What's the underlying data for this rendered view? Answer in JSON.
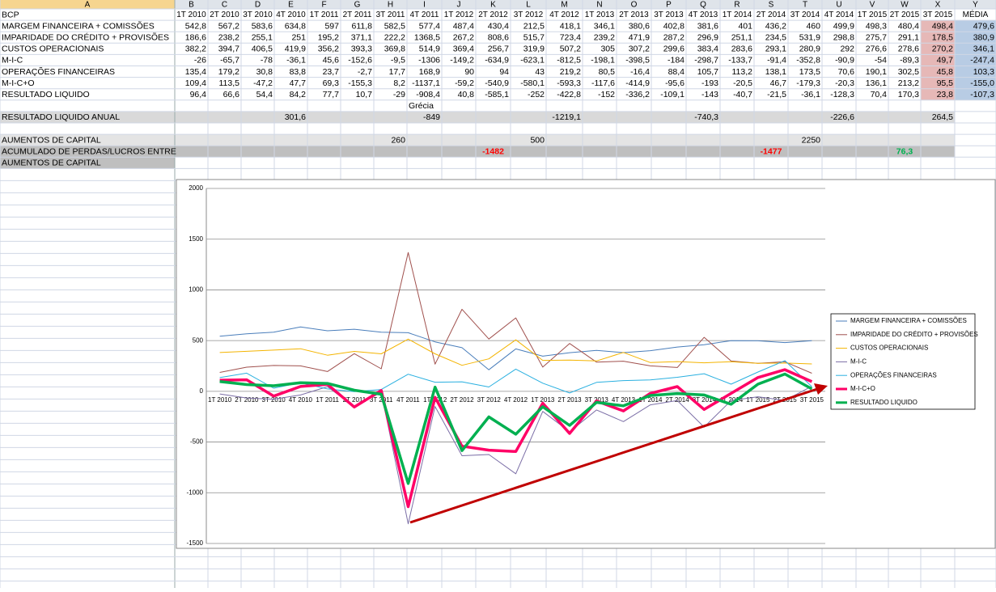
{
  "sheet": {
    "column_headers": [
      "A",
      "B",
      "C",
      "D",
      "E",
      "F",
      "G",
      "H",
      "I",
      "J",
      "K",
      "L",
      "M",
      "N",
      "O",
      "P",
      "Q",
      "R",
      "S",
      "T",
      "U",
      "V",
      "W",
      "X",
      "Y"
    ],
    "rows": [
      [
        "BCP",
        "1T 2010",
        "2T 2010",
        "3T 2010",
        "4T 2010",
        "1T 2011",
        "2T 2011",
        "3T 2011",
        "4T 2011",
        "1T 2012",
        "2T 2012",
        "3T 2012",
        "4T 2012",
        "1T 2013",
        "2T 2013",
        "3T 2013",
        "4T 2013",
        "1T 2014",
        "2T 2014",
        "3T 2014",
        "4T 2014",
        "1T 2015",
        "2T 2015",
        "3T 2015",
        "MÉDIA"
      ],
      [
        "MARGEM FINANCEIRA + COMISSÕES",
        "542,8",
        "567,2",
        "583,6",
        "634,8",
        "597",
        "611,8",
        "582,5",
        "577,4",
        "487,4",
        "430,4",
        "212,5",
        "418,1",
        "346,1",
        "380,6",
        "402,8",
        "381,6",
        "401",
        "436,2",
        "460",
        "499,9",
        "498,3",
        "480,4",
        "498,4",
        "479,6"
      ],
      [
        "IMPARIDADE DO CRÉDITO + PROVISÕES",
        "186,6",
        "238,2",
        "255,1",
        "251",
        "195,2",
        "371,1",
        "222,2",
        "1368,5",
        "267,2",
        "808,6",
        "515,7",
        "723,4",
        "239,2",
        "471,9",
        "287,2",
        "296,9",
        "251,1",
        "234,5",
        "531,9",
        "298,8",
        "275,7",
        "291,1",
        "178,5",
        "380,9"
      ],
      [
        "CUSTOS OPERACIONAIS",
        "382,2",
        "394,7",
        "406,5",
        "419,9",
        "356,2",
        "393,3",
        "369,8",
        "514,9",
        "369,4",
        "256,7",
        "319,9",
        "507,2",
        "305",
        "307,2",
        "299,6",
        "383,4",
        "283,6",
        "293,1",
        "280,9",
        "292",
        "276,6",
        "278,6",
        "270,2",
        "346,1"
      ],
      [
        "M-I-C",
        "-26",
        "-65,7",
        "-78",
        "-36,1",
        "45,6",
        "-152,6",
        "-9,5",
        "-1306",
        "-149,2",
        "-634,9",
        "-623,1",
        "-812,5",
        "-198,1",
        "-398,5",
        "-184",
        "-298,7",
        "-133,7",
        "-91,4",
        "-352,8",
        "-90,9",
        "-54",
        "-89,3",
        "49,7",
        "-247,4"
      ],
      [
        "OPERAÇÕES FINANCEIRAS",
        "135,4",
        "179,2",
        "30,8",
        "83,8",
        "23,7",
        "-2,7",
        "17,7",
        "168,9",
        "90",
        "94",
        "43",
        "219,2",
        "80,5",
        "-16,4",
        "88,4",
        "105,7",
        "113,2",
        "138,1",
        "173,5",
        "70,6",
        "190,1",
        "302,5",
        "45,8",
        "103,3"
      ],
      [
        "M-I-C+O",
        "109,4",
        "113,5",
        "-47,2",
        "47,7",
        "69,3",
        "-155,3",
        "8,2",
        "-1137,1",
        "-59,2",
        "-540,9",
        "-580,1",
        "-593,3",
        "-117,6",
        "-414,9",
        "-95,6",
        "-193",
        "-20,5",
        "46,7",
        "-179,3",
        "-20,3",
        "136,1",
        "213,2",
        "95,5",
        "-155,0"
      ],
      [
        "RESULTADO LIQUIDO",
        "96,4",
        "66,6",
        "54,4",
        "84,2",
        "77,7",
        "10,7",
        "-29",
        "-908,4",
        "40,8",
        "-585,1",
        "-252",
        "-422,8",
        "-152",
        "-336,2",
        "-109,1",
        "-143",
        "-40,7",
        "-21,5",
        "-36,1",
        "-128,3",
        "70,4",
        "170,3",
        "23,8",
        "-107,3"
      ],
      [
        null,
        null,
        null,
        null,
        null,
        null,
        null,
        null,
        "Grécia",
        null,
        null,
        null,
        null,
        null,
        null,
        null,
        null,
        null,
        null,
        null,
        null,
        null,
        null,
        null,
        null
      ],
      [
        "RESULTADO LIQUIDO ANUAL",
        null,
        null,
        null,
        "301,6",
        null,
        null,
        null,
        "-849",
        null,
        null,
        null,
        "-1219,1",
        null,
        null,
        null,
        "-740,3",
        null,
        null,
        null,
        "-226,6",
        null,
        null,
        "264,5",
        null
      ],
      [
        null,
        null,
        null,
        null,
        null,
        null,
        null,
        null,
        null,
        null,
        null,
        null,
        null,
        null,
        null,
        null,
        null,
        null,
        null,
        null,
        null,
        null,
        null,
        null,
        null
      ],
      [
        "AUMENTOS DE CAPITAL",
        null,
        null,
        null,
        null,
        null,
        null,
        "260",
        null,
        null,
        null,
        "500",
        null,
        null,
        null,
        null,
        null,
        null,
        null,
        "2250",
        null,
        null,
        null,
        null,
        null
      ],
      [
        "ACUMULADO DE PERDAS/LUCROS ENTRE",
        null,
        null,
        null,
        null,
        null,
        null,
        null,
        null,
        null,
        "-1482",
        null,
        null,
        null,
        null,
        null,
        null,
        null,
        "-1477",
        null,
        null,
        null,
        "76,3",
        null,
        null
      ],
      [
        "AUMENTOS DE CAPITAL",
        null,
        null,
        null,
        null,
        null,
        null,
        null,
        null,
        null,
        null,
        null,
        null,
        null,
        null,
        null,
        null,
        null,
        null,
        null,
        null,
        null,
        null,
        null,
        null
      ]
    ]
  },
  "chart_data": {
    "type": "line",
    "categories": [
      "1T 2010",
      "2T 2010",
      "3T 2010",
      "4T 2010",
      "1T 2011",
      "2T 2011",
      "3T 2011",
      "4T 2011",
      "1T 2012",
      "2T 2012",
      "3T 2012",
      "4T 2012",
      "1T 2013",
      "2T 2013",
      "3T 2013",
      "4T 2013",
      "1T 2014",
      "2T 2014",
      "3T 2014",
      "4T 2014",
      "1T 2015",
      "2T 2015",
      "3T 2015"
    ],
    "series": [
      {
        "name": "MARGEM FINANCEIRA + COMISSÕES",
        "color": "#4a7ebb",
        "values": [
          542.8,
          567.2,
          583.6,
          634.8,
          597,
          611.8,
          582.5,
          577.4,
          487.4,
          430.4,
          212.5,
          418.1,
          346.1,
          380.6,
          402.8,
          381.6,
          401,
          436.2,
          460,
          499.9,
          498.3,
          480.4,
          498.4
        ]
      },
      {
        "name": "IMPARIDADE DO CRÉDITO + PROVISÕES",
        "color": "#a0504d",
        "values": [
          186.6,
          238.2,
          255.1,
          251,
          195.2,
          371.1,
          222.2,
          1368.5,
          267.2,
          808.6,
          515.7,
          723.4,
          239.2,
          471.9,
          287.2,
          296.9,
          251.1,
          234.5,
          531.9,
          298.8,
          275.7,
          291.1,
          178.5
        ]
      },
      {
        "name": "CUSTOS OPERACIONAIS",
        "color": "#f4b400",
        "values": [
          382.2,
          394.7,
          406.5,
          419.9,
          356.2,
          393.3,
          369.8,
          514.9,
          369.4,
          256.7,
          319.9,
          507.2,
          305,
          307.2,
          299.6,
          383.4,
          283.6,
          293.1,
          280.9,
          292,
          276.6,
          278.6,
          270.2
        ]
      },
      {
        "name": "M-I-C",
        "color": "#7b6ea6",
        "values": [
          -26,
          -65.7,
          -78,
          -36.1,
          45.6,
          -152.6,
          -9.5,
          -1306,
          -149.2,
          -634.9,
          -623.1,
          -812.5,
          -198.1,
          -398.5,
          -184,
          -298.7,
          -133.7,
          -91.4,
          -352.8,
          -90.9,
          -54,
          -89.3,
          49.7
        ]
      },
      {
        "name": "OPERAÇÕES FINANCEIRAS",
        "color": "#2ab0e0",
        "values": [
          135.4,
          179.2,
          30.8,
          83.8,
          23.7,
          -2.7,
          17.7,
          168.9,
          90,
          94,
          43,
          219.2,
          80.5,
          -16.4,
          88.4,
          105.7,
          113.2,
          138.1,
          173.5,
          70.6,
          190.1,
          302.5,
          45.8
        ]
      },
      {
        "name": "M-I-C+O",
        "color": "#ff0066",
        "values": [
          109.4,
          113.5,
          -47.2,
          47.7,
          69.3,
          -155.3,
          8.2,
          -1137.1,
          -59.2,
          -540.9,
          -580.1,
          -593.3,
          -117.6,
          -414.9,
          -95.6,
          -193,
          -20.5,
          46.7,
          -179.3,
          -20.3,
          136.1,
          213.2,
          95.5
        ]
      },
      {
        "name": "RESULTADO LIQUIDO",
        "color": "#00b050",
        "values": [
          96.4,
          66.6,
          54.4,
          84.2,
          77.7,
          10.7,
          -29,
          -908.4,
          40.8,
          -585.1,
          -252,
          -422.8,
          -152,
          -336.2,
          -109.1,
          -143,
          -40.7,
          -21.5,
          -36.1,
          -128.3,
          70.4,
          170.3,
          23.8
        ]
      }
    ],
    "ylim": [
      -1500,
      2000
    ],
    "yticks": [
      -1500,
      -1000,
      -500,
      0,
      500,
      1000,
      1500,
      2000
    ],
    "grid": true,
    "legend": "right"
  }
}
